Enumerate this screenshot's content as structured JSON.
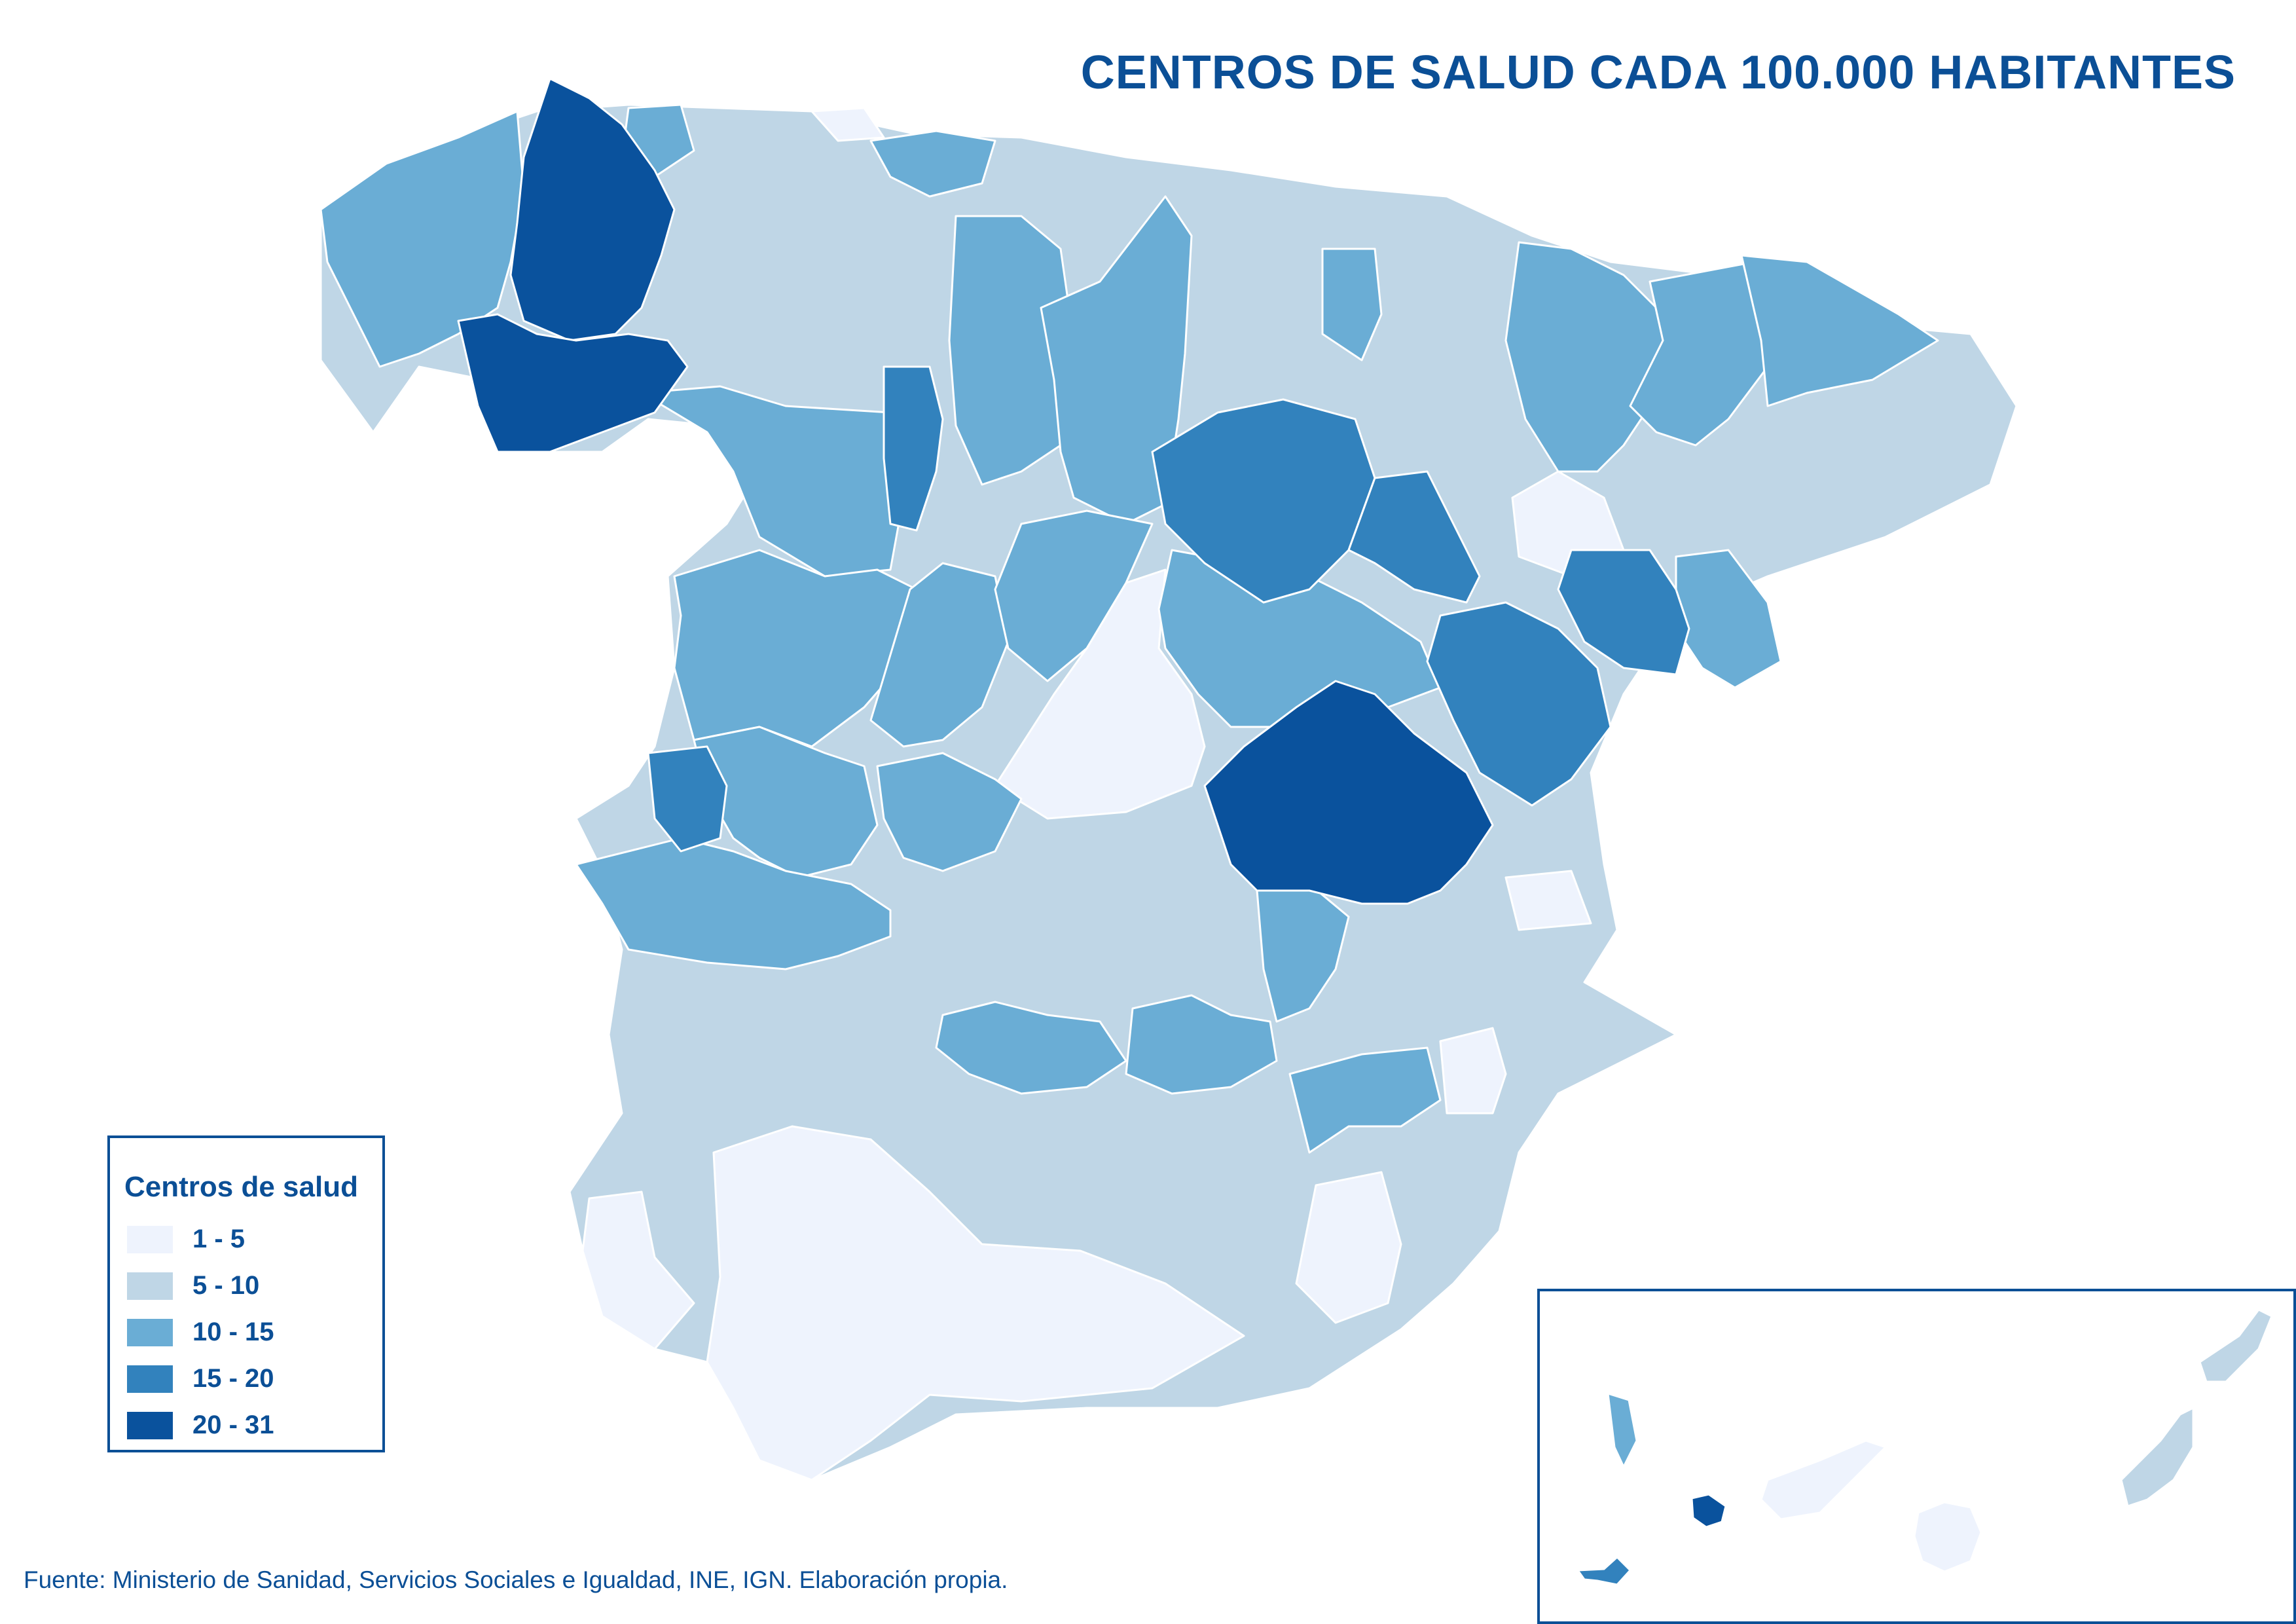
{
  "title": "CENTROS DE SALUD CADA 100.000 HABITANTES",
  "legend": {
    "title": "Centros de salud",
    "items": [
      {
        "label": "1 - 5",
        "color": "#eef3fd"
      },
      {
        "label": "5 - 10",
        "color": "#bfd6e6"
      },
      {
        "label": "10 - 15",
        "color": "#6aadd5"
      },
      {
        "label": "15 - 20",
        "color": "#3282bd"
      },
      {
        "label": "20 - 31",
        "color": "#0a529d"
      }
    ]
  },
  "source": "Fuente: Ministerio de Sanidad, Servicios Sociales e Igualdad, INE, IGN. Elaboración propia.",
  "colors": {
    "accent": "#0b4f96",
    "border": "#ffffff"
  }
}
